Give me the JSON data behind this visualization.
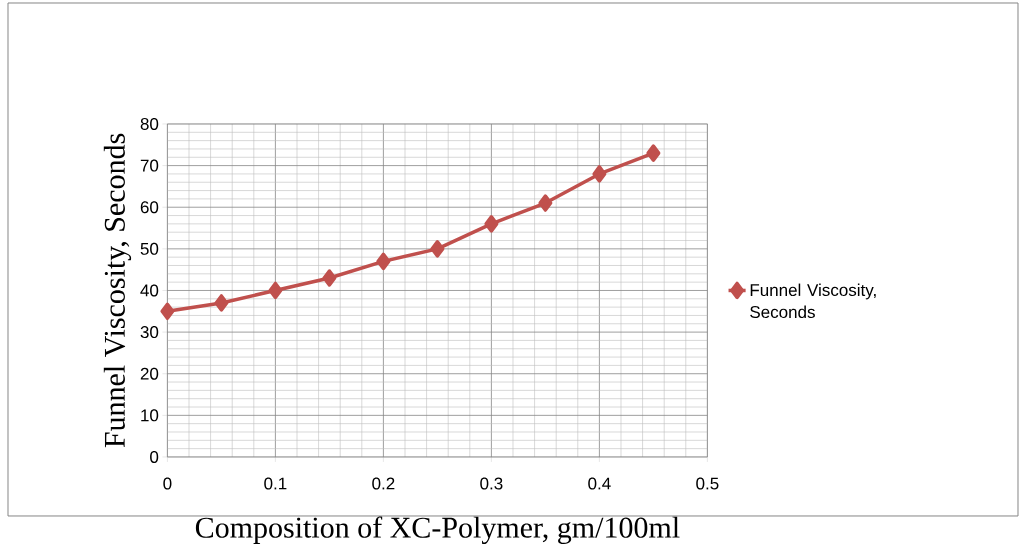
{
  "chart_data": {
    "type": "line",
    "xlabel": "Composition of XC-Polymer, gm/100ml",
    "ylabel": "Funnel Viscosity, Seconds",
    "x": [
      0,
      0.05,
      0.1,
      0.15,
      0.2,
      0.25,
      0.3,
      0.35,
      0.4,
      0.45
    ],
    "series": [
      {
        "name": "Funnel Viscosity, Seconds",
        "color": "#c0504d",
        "values": [
          35,
          37,
          40,
          43,
          47,
          50,
          56,
          61,
          68,
          73
        ]
      }
    ],
    "xlim": [
      0,
      0.5
    ],
    "xticks": [
      0,
      0.1,
      0.2,
      0.3,
      0.4,
      0.5
    ],
    "ylim": [
      0,
      80
    ],
    "yticks": [
      0,
      10,
      20,
      30,
      40,
      50,
      60,
      70,
      80
    ],
    "grid": true,
    "legend": "right",
    "marker": "diamond",
    "line_style": "solid"
  }
}
